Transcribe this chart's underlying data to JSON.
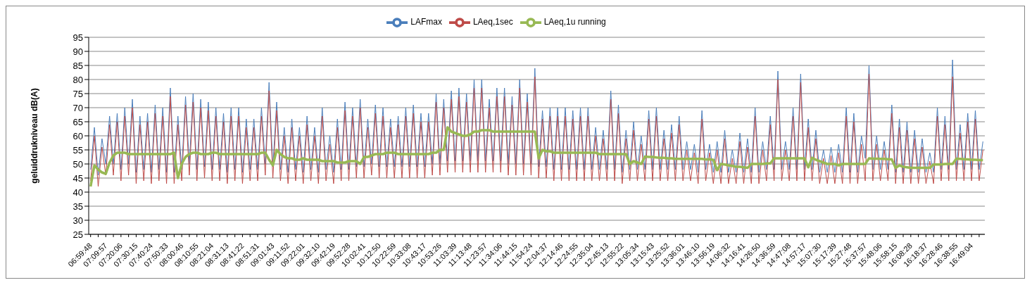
{
  "chart_data": {
    "type": "line",
    "ylabel": "geluiddrukniveau  dB(A)",
    "ylim": [
      25,
      95
    ],
    "yticks": [
      25,
      30,
      35,
      40,
      45,
      50,
      55,
      60,
      65,
      70,
      75,
      80,
      85,
      90,
      95
    ],
    "grid": "y",
    "legend": "top",
    "marker": "none",
    "line_style": "solid",
    "categories": [
      "06:59:48",
      null,
      null,
      null,
      "07:09:57",
      null,
      null,
      null,
      "07:20:06",
      null,
      null,
      null,
      "07:30:15",
      null,
      null,
      null,
      "07:40:24",
      null,
      null,
      null,
      "07:50:33",
      null,
      null,
      null,
      "08:00:46",
      null,
      null,
      null,
      "08:10:55",
      null,
      null,
      null,
      "08:21:04",
      null,
      null,
      null,
      "08:31:13",
      null,
      null,
      null,
      "08:41:22",
      null,
      null,
      null,
      "08:51:31",
      null,
      null,
      null,
      "09:01:43",
      null,
      null,
      null,
      "09:11:52",
      null,
      null,
      null,
      "09:22:01",
      null,
      null,
      null,
      "09:32:10",
      null,
      null,
      null,
      "09:42:19",
      null,
      null,
      null,
      "09:52:28",
      null,
      null,
      null,
      "10:02:41",
      null,
      null,
      null,
      "10:12:50",
      null,
      null,
      null,
      "10:22:59",
      null,
      null,
      null,
      "10:33:08",
      null,
      null,
      null,
      "10:43:17",
      null,
      null,
      null,
      "10:53:26",
      null,
      null,
      null,
      "11:03:39",
      null,
      null,
      null,
      "11:13:48",
      null,
      null,
      null,
      "11:23:57",
      null,
      null,
      null,
      "11:34:06",
      null,
      null,
      null,
      "11:44:15",
      null,
      null,
      null,
      "11:54:24",
      null,
      null,
      null,
      "12:04:37",
      null,
      null,
      null,
      "12:14:46",
      null,
      null,
      null,
      "12:24:55",
      null,
      null,
      null,
      "12:35:04",
      null,
      null,
      null,
      "12:45:13",
      null,
      null,
      null,
      "12:55:22",
      null,
      null,
      null,
      "13:05:34",
      null,
      null,
      null,
      "13:15:43",
      null,
      null,
      null,
      "13:25:52",
      null,
      null,
      null,
      "13:36:01",
      null,
      null,
      null,
      "13:46:10",
      null,
      null,
      null,
      "13:56:19",
      null,
      null,
      null,
      "14:06:32",
      null,
      null,
      null,
      "14:16:41",
      null,
      null,
      null,
      "14:26:50",
      null,
      null,
      null,
      "14:36:59",
      null,
      null,
      null,
      "14:47:08",
      null,
      null,
      null,
      "14:57:17",
      null,
      null,
      null,
      "15:07:30",
      null,
      null,
      null,
      "15:17:39",
      null,
      null,
      null,
      "15:27:48",
      null,
      null,
      null,
      "15:37:57",
      null,
      null,
      null,
      "15:48:06",
      null,
      null,
      null,
      "15:58:15",
      null,
      null,
      null,
      "16:08:28",
      null,
      null,
      null,
      "16:18:37",
      null,
      null,
      null,
      "16:28:46",
      null,
      null,
      null,
      "16:38:55",
      null,
      null,
      null,
      "16:49:04",
      null,
      null,
      null
    ],
    "series": [
      {
        "name": "LAFmax",
        "color": "#4a7ebb",
        "values": [
          48,
          63,
          46,
          59,
          50,
          67,
          50,
          68,
          48,
          70,
          50,
          73,
          47,
          67,
          48,
          68,
          47,
          71,
          48,
          70,
          47,
          77,
          47,
          67,
          48,
          74,
          50,
          75,
          48,
          73,
          49,
          72,
          48,
          70,
          48,
          68,
          47,
          70,
          48,
          70,
          47,
          66,
          48,
          66,
          48,
          70,
          50,
          79,
          49,
          72,
          48,
          63,
          47,
          66,
          48,
          63,
          47,
          67,
          48,
          63,
          47,
          70,
          48,
          60,
          47,
          66,
          48,
          72,
          48,
          70,
          49,
          73,
          49,
          66,
          50,
          71,
          49,
          70,
          49,
          66,
          49,
          67,
          49,
          70,
          49,
          71,
          49,
          68,
          49,
          68,
          50,
          75,
          50,
          73,
          51,
          76,
          51,
          77,
          51,
          75,
          51,
          80,
          51,
          80,
          51,
          73,
          51,
          77,
          51,
          77,
          50,
          74,
          50,
          80,
          50,
          75,
          50,
          84,
          49,
          69,
          49,
          70,
          48,
          70,
          48,
          70,
          48,
          69,
          48,
          70,
          48,
          70,
          48,
          63,
          48,
          62,
          48,
          76,
          48,
          71,
          47,
          62,
          48,
          65,
          48,
          60,
          48,
          69,
          48,
          70,
          48,
          62,
          48,
          64,
          48,
          67,
          48,
          58,
          48,
          57,
          47,
          69,
          48,
          57,
          47,
          58,
          47,
          62,
          47,
          55,
          47,
          61,
          47,
          59,
          47,
          70,
          47,
          58,
          48,
          67,
          48,
          83,
          48,
          58,
          48,
          70,
          48,
          82,
          48,
          66,
          48,
          62,
          47,
          55,
          47,
          56,
          47,
          57,
          47,
          70,
          47,
          68,
          47,
          60,
          52,
          85,
          48,
          60,
          48,
          58,
          48,
          71,
          47,
          66,
          47,
          65,
          47,
          62,
          47,
          59,
          47,
          54,
          47,
          70,
          48,
          67,
          48,
          87,
          48,
          64,
          48,
          68,
          48,
          69,
          48,
          58
        ]
      },
      {
        "name": "LAeq,1sec",
        "color": "#be4b48",
        "values": [
          44,
          60,
          42,
          56,
          46,
          64,
          46,
          65,
          44,
          67,
          46,
          70,
          43,
          64,
          44,
          65,
          43,
          68,
          44,
          67,
          43,
          74,
          43,
          64,
          44,
          71,
          46,
          72,
          44,
          70,
          45,
          69,
          44,
          67,
          44,
          65,
          43,
          67,
          44,
          67,
          43,
          63,
          44,
          63,
          44,
          67,
          46,
          76,
          45,
          69,
          44,
          60,
          43,
          63,
          44,
          60,
          43,
          64,
          44,
          60,
          43,
          67,
          44,
          57,
          43,
          63,
          44,
          69,
          44,
          67,
          45,
          70,
          45,
          63,
          46,
          68,
          45,
          67,
          45,
          63,
          45,
          64,
          45,
          67,
          45,
          68,
          45,
          65,
          45,
          65,
          46,
          72,
          46,
          70,
          47,
          73,
          47,
          74,
          47,
          72,
          47,
          77,
          47,
          77,
          47,
          70,
          47,
          74,
          47,
          74,
          46,
          71,
          46,
          77,
          46,
          72,
          46,
          81,
          45,
          66,
          45,
          67,
          44,
          67,
          44,
          67,
          44,
          66,
          44,
          67,
          44,
          67,
          44,
          60,
          44,
          59,
          44,
          73,
          44,
          68,
          43,
          59,
          44,
          62,
          44,
          57,
          44,
          66,
          44,
          67,
          44,
          59,
          44,
          61,
          44,
          64,
          44,
          55,
          44,
          54,
          43,
          66,
          44,
          54,
          43,
          55,
          43,
          59,
          43,
          52,
          43,
          58,
          43,
          56,
          43,
          67,
          43,
          55,
          44,
          64,
          44,
          80,
          44,
          55,
          44,
          67,
          44,
          79,
          44,
          63,
          44,
          59,
          43,
          52,
          43,
          53,
          43,
          54,
          43,
          67,
          43,
          65,
          43,
          57,
          44,
          82,
          44,
          57,
          44,
          55,
          44,
          68,
          43,
          63,
          43,
          62,
          43,
          59,
          43,
          56,
          43,
          51,
          43,
          67,
          44,
          64,
          44,
          81,
          44,
          61,
          44,
          65,
          44,
          66,
          44,
          55
        ]
      },
      {
        "name": "LAeq,1u running",
        "color": "#98b954",
        "values": [
          42,
          49.5,
          48,
          47,
          46.5,
          50.5,
          53,
          54,
          54,
          54,
          53.5,
          53.5,
          53.5,
          53.5,
          53.5,
          53.5,
          53.5,
          53.5,
          53.5,
          53.5,
          53.5,
          53.5,
          54,
          45,
          50,
          52.5,
          53.5,
          54,
          54,
          53.5,
          53.5,
          53.5,
          54,
          54,
          53.5,
          53.5,
          53.5,
          53.5,
          53.5,
          53.5,
          53.5,
          53.5,
          53.5,
          53.5,
          53.5,
          54,
          54,
          51.5,
          49.5,
          55,
          53.5,
          52.5,
          52,
          52,
          51.5,
          51.5,
          52,
          51.5,
          51.5,
          51.5,
          51.5,
          51,
          51,
          51,
          51,
          50.5,
          50.5,
          50.5,
          51,
          51,
          51,
          50,
          52.5,
          52.5,
          53,
          53.5,
          53.5,
          53.5,
          54,
          54,
          54,
          53.5,
          53.5,
          53.5,
          53.5,
          53.5,
          53.5,
          53.5,
          53.5,
          53.5,
          54,
          54,
          55,
          55,
          63,
          61.5,
          61,
          60.5,
          60,
          60,
          60.5,
          61.5,
          61.5,
          62,
          62,
          62,
          61.5,
          61.5,
          61.5,
          61.5,
          61.5,
          61.5,
          61.5,
          61.5,
          61.5,
          61.5,
          61.5,
          61.5,
          52,
          55,
          54.5,
          54.5,
          54,
          54,
          54,
          54,
          54,
          54,
          54,
          54,
          54,
          54,
          54,
          54,
          53.5,
          53.5,
          53.5,
          53.5,
          53.5,
          53.5,
          53.5,
          53.5,
          50,
          51,
          50.5,
          50,
          52.6,
          52.5,
          52.5,
          52.3,
          52.2,
          52.2,
          52,
          52,
          51.8,
          51.8,
          51.8,
          51.8,
          51.8,
          51.8,
          51.8,
          51.8,
          51.6,
          51.6,
          51.5,
          47.8,
          50,
          49.8,
          49.5,
          49.3,
          49,
          49,
          48.8,
          48.6,
          50,
          50,
          50,
          50,
          50.2,
          50.2,
          52,
          52,
          52,
          52,
          52,
          52,
          52,
          52,
          52,
          48.8,
          52.2,
          51.5,
          51,
          50.5,
          50,
          50,
          50,
          49.5,
          50,
          50,
          50,
          50,
          50,
          50,
          50,
          52,
          51.9,
          51.9,
          51.8,
          51.8,
          51.7,
          51.6,
          48.6,
          49.5,
          49,
          48.8,
          48.6,
          48.6,
          48.6,
          48.6,
          48.6,
          48.6,
          49.8,
          49.8,
          49.8,
          50,
          50,
          50,
          51.9,
          51.8,
          51.7,
          51.6,
          51.5,
          51.5,
          51.4,
          51.4
        ]
      }
    ]
  }
}
